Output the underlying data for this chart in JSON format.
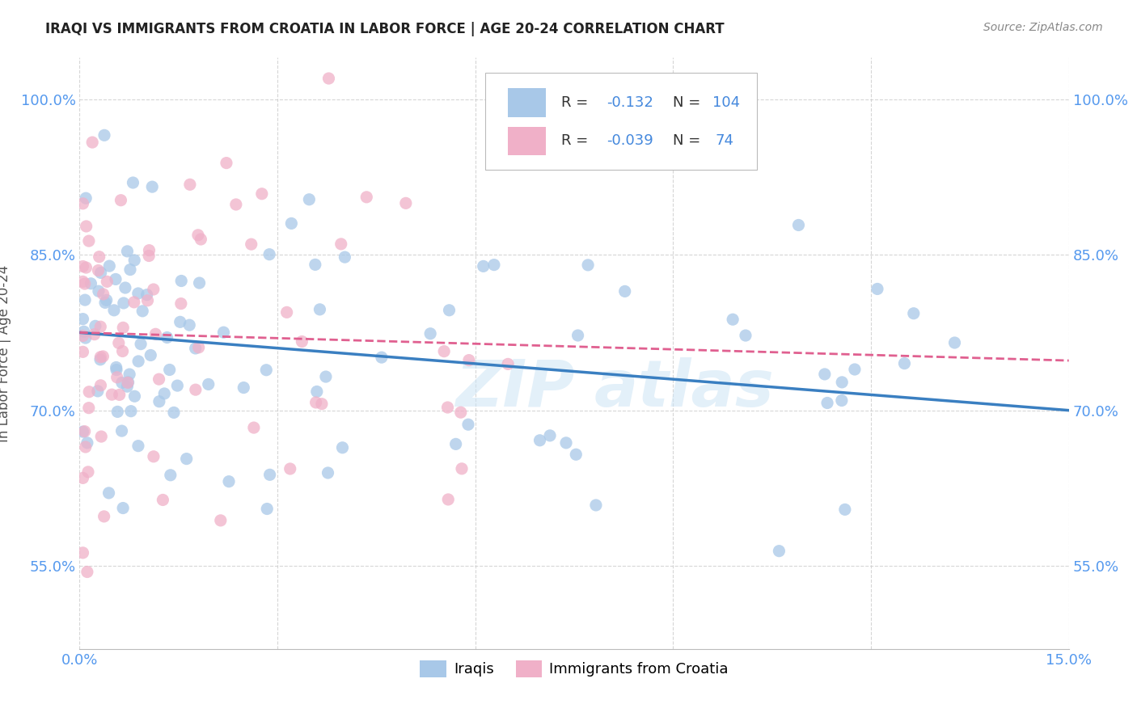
{
  "title": "IRAQI VS IMMIGRANTS FROM CROATIA IN LABOR FORCE | AGE 20-24 CORRELATION CHART",
  "source": "Source: ZipAtlas.com",
  "ylabel": "In Labor Force | Age 20-24",
  "xlim": [
    0.0,
    0.15
  ],
  "ylim": [
    0.47,
    1.04
  ],
  "xticks": [
    0.0,
    0.03,
    0.06,
    0.09,
    0.12,
    0.15
  ],
  "xticklabels": [
    "0.0%",
    "",
    "",
    "",
    "",
    "15.0%"
  ],
  "yticks": [
    0.55,
    0.7,
    0.85,
    1.0
  ],
  "yticklabels": [
    "55.0%",
    "70.0%",
    "85.0%",
    "100.0%"
  ],
  "color_iraqi": "#a8c8e8",
  "color_croatia": "#f0b0c8",
  "line_color_iraqi": "#3a7fc1",
  "line_color_croatia": "#e06090",
  "tick_color": "#5599ee",
  "legend_color": "#4488dd"
}
